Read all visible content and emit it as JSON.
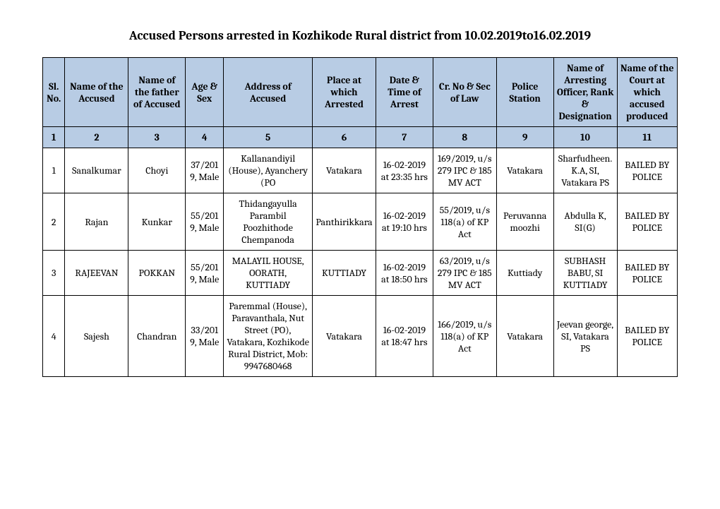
{
  "title": "Accused Persons arrested in   Kozhikode Rural  district from   10.02.2019to16.02.2019",
  "headers": {
    "sl": "Sl. No.",
    "name": "Name of the Accused",
    "father": "Name of the father of Accused",
    "age": "Age & Sex",
    "address": "Address of Accused",
    "place": "Place at which Arrested",
    "datetime": "Date & Time of Arrest",
    "crno": "Cr. No & Sec of Law",
    "station": "Police Station",
    "officer": "Name of Arresting Officer, Rank & Designation",
    "court": "Name of the Court at which accused produced"
  },
  "numrow": [
    "1",
    "2",
    "3",
    "4",
    "5",
    "6",
    "7",
    "8",
    "9",
    "10",
    "11"
  ],
  "rows": [
    {
      "sl": "1",
      "name": "Sanalkumar",
      "father": "Choyi",
      "age": "37/2019, Male",
      "address": "Kallanandiyil (House), Ayanchery (PO",
      "place": "Vatakara",
      "datetime": "16-02-2019 at 23:35 hrs",
      "crno": "169/2019, u/s 279 IPC & 185 MV ACT",
      "station": "Vatakara",
      "officer": "Sharfudheen. K.A, SI, Vatakara PS",
      "court": "BAILED BY POLICE"
    },
    {
      "sl": "2",
      "name": "Rajan",
      "father": "Kunkar",
      "age": "55/2019, Male",
      "address": "Thidangayulla Parambil Poozhithode Chempanoda",
      "place": "Panthirikkara",
      "datetime": "16-02-2019 at 19:10 hrs",
      "crno": "55/2019, u/s 118(a) of KP Act",
      "station": "Peruvannamoozhi",
      "officer": "Abdulla K, SI(G)",
      "court": "BAILED BY POLICE"
    },
    {
      "sl": "3",
      "name": "RAJEEVAN",
      "father": "POKKAN",
      "age": "55/2019, Male",
      "address": "MALAYIL HOUSE, OORATH, KUTTIADY",
      "place": "KUTTIADY",
      "datetime": "16-02-2019 at 18:50 hrs",
      "crno": "63/2019, u/s 279 IPC & 185 MV ACT",
      "station": "Kuttiady",
      "officer": "SUBHASH BABU, SI KUTTIADY",
      "court": "BAILED BY POLICE"
    },
    {
      "sl": "4",
      "name": "Sajesh",
      "father": "Chandran",
      "age": "33/2019, Male",
      "address": "Paremmal (House), Paravanthala, Nut Street (PO), Vatakara, Kozhikode Rural District, Mob: 9947680468",
      "place": "Vatakara",
      "datetime": "16-02-2019 at 18:47 hrs",
      "crno": "166/2019, u/s 118(a) of KP Act",
      "station": "Vatakara",
      "officer": "Jeevan george, SI, Vatakara PS",
      "court": "BAILED BY POLICE"
    }
  ],
  "style": {
    "header_bg": "#b8cce4",
    "border_color": "#000000",
    "title_fontsize": 18,
    "cell_fontsize": 14
  }
}
